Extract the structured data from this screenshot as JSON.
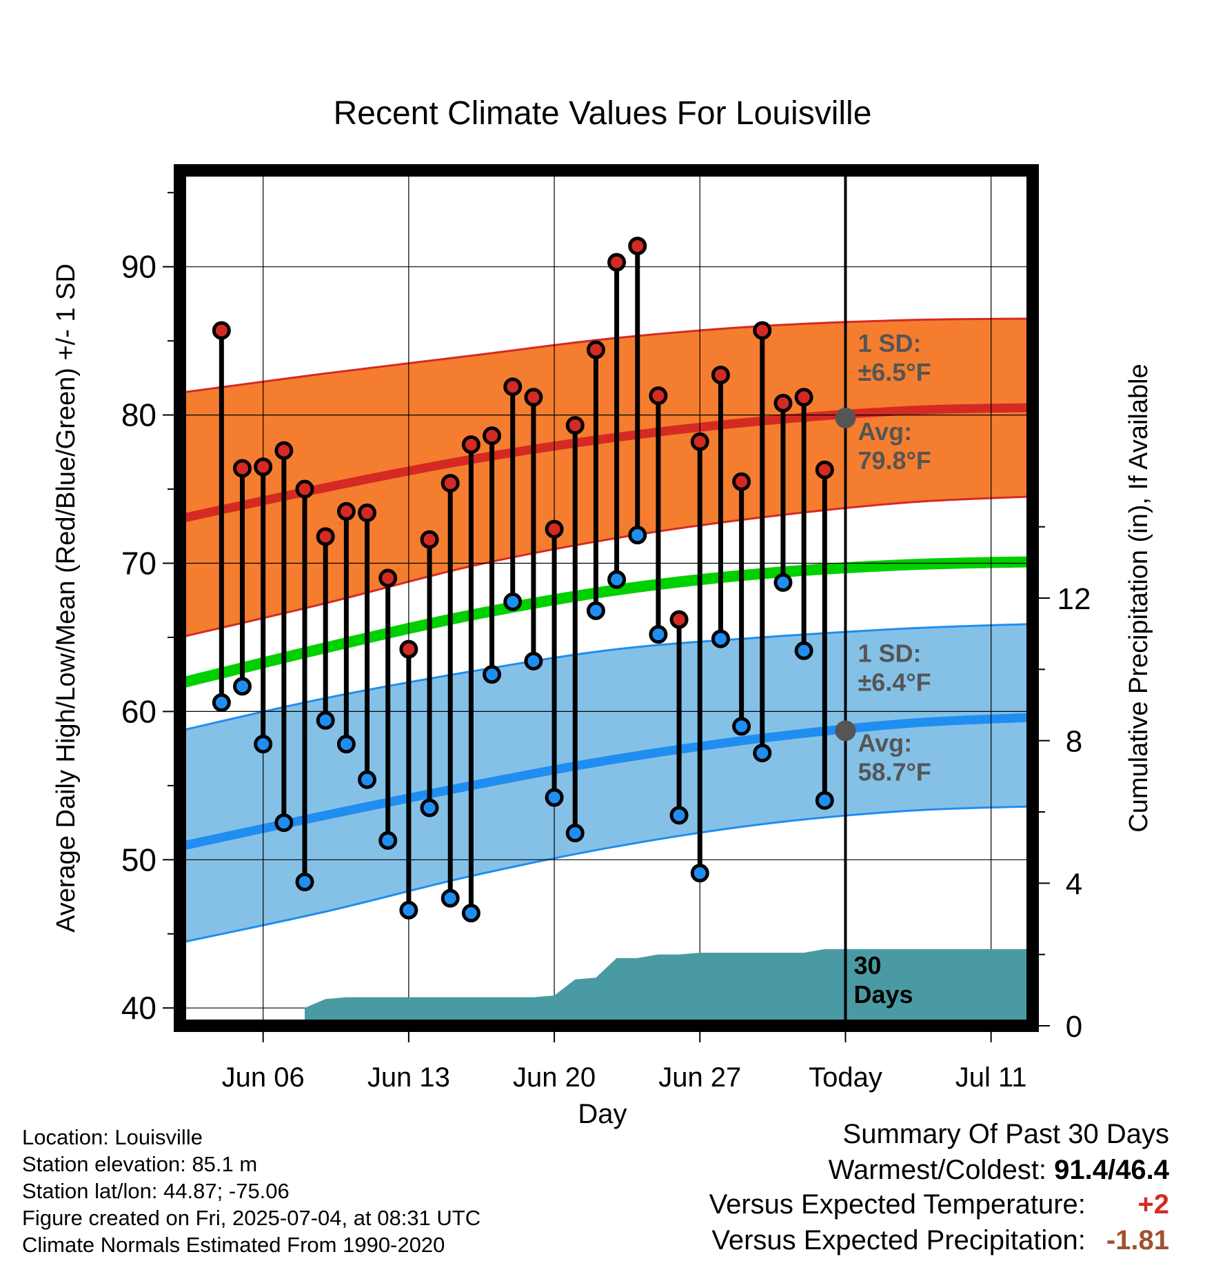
{
  "chart_data": {
    "type": "line",
    "title": "Recent Climate Values For Louisville",
    "xlabel": "Day",
    "ylabel": "Average Daily High/Low/Mean (Red/Blue/Green) +/- 1 SD",
    "y2label": "Cumulative Precipitation (in), If Available",
    "ylim": [
      38.8,
      96.5
    ],
    "y2lim": [
      0,
      24
    ],
    "yticks": [
      40,
      50,
      60,
      70,
      80,
      90
    ],
    "y2ticks": [
      0,
      4,
      8,
      12
    ],
    "xlim": [
      "Jun 02",
      "Jul 13"
    ],
    "xticks": [
      {
        "x": "Jun 06",
        "label": "Jun 06"
      },
      {
        "x": "Jun 13",
        "label": "Jun 13"
      },
      {
        "x": "Jun 20",
        "label": "Jun 20"
      },
      {
        "x": "Jun 27",
        "label": "Jun 27"
      },
      {
        "x": "Jul 04",
        "label": "Today"
      },
      {
        "x": "Jul 11",
        "label": "Jul 11"
      }
    ],
    "grid": true,
    "today": "Jul 04",
    "dates": [
      "Jun 04",
      "Jun 05",
      "Jun 06",
      "Jun 07",
      "Jun 08",
      "Jun 09",
      "Jun 10",
      "Jun 11",
      "Jun 12",
      "Jun 13",
      "Jun 14",
      "Jun 15",
      "Jun 16",
      "Jun 17",
      "Jun 18",
      "Jun 19",
      "Jun 20",
      "Jun 21",
      "Jun 22",
      "Jun 23",
      "Jun 24",
      "Jun 25",
      "Jun 26",
      "Jun 27",
      "Jun 28",
      "Jun 29",
      "Jun 30",
      "Jul 01",
      "Jul 02",
      "Jul 03"
    ],
    "highs": [
      85.7,
      76.4,
      76.5,
      77.6,
      75.0,
      71.8,
      73.5,
      73.4,
      69.0,
      64.2,
      71.6,
      75.4,
      78.0,
      78.6,
      81.9,
      81.2,
      72.3,
      79.3,
      84.4,
      90.3,
      91.4,
      81.3,
      66.2,
      78.2,
      82.7,
      75.5,
      85.7,
      80.8,
      81.2,
      76.3
    ],
    "lows": [
      60.6,
      61.7,
      57.8,
      52.5,
      48.5,
      59.4,
      57.8,
      55.4,
      51.3,
      46.6,
      53.5,
      47.4,
      46.4,
      62.5,
      67.4,
      63.4,
      54.2,
      51.8,
      66.8,
      68.9,
      71.9,
      65.2,
      53.0,
      49.1,
      64.9,
      59.0,
      57.2,
      68.7,
      64.1,
      54.0
    ],
    "normals": {
      "x": [
        "Jun 02",
        "Jun 09",
        "Jun 16",
        "Jun 23",
        "Jun 30",
        "Jul 07",
        "Jul 13"
      ],
      "high_mean": [
        73.0,
        75.1,
        77.0,
        78.5,
        79.6,
        80.3,
        80.5
      ],
      "high_upper": [
        81.5,
        82.8,
        84.0,
        85.2,
        86.0,
        86.4,
        86.5
      ],
      "high_lower": [
        65.0,
        67.3,
        69.8,
        71.7,
        73.1,
        74.1,
        74.5
      ],
      "mean": [
        61.9,
        64.3,
        66.5,
        68.2,
        69.3,
        69.9,
        70.1
      ],
      "low_mean": [
        50.9,
        53.0,
        55.0,
        56.8,
        58.2,
        59.2,
        59.6
      ],
      "low_upper": [
        58.7,
        60.9,
        62.7,
        64.2,
        65.0,
        65.6,
        65.9
      ],
      "low_lower": [
        44.4,
        46.5,
        48.9,
        50.9,
        52.4,
        53.3,
        53.6
      ]
    },
    "precip_cumulative": {
      "x": [
        "Jun 08",
        "Jun 09",
        "Jun 10",
        "Jun 19",
        "Jun 20",
        "Jun 21",
        "Jun 22",
        "Jun 23",
        "Jun 24",
        "Jun 25",
        "Jun 26",
        "Jun 27",
        "Jul 02",
        "Jul 03",
        "Jul 04",
        "Jul 13"
      ],
      "values": [
        0.5,
        0.75,
        0.8,
        0.8,
        0.85,
        1.3,
        1.35,
        1.9,
        1.9,
        2.0,
        2.0,
        2.05,
        2.05,
        2.15,
        2.15,
        2.15
      ]
    },
    "annotations": {
      "high_sd": "1 SD:\n±6.5°F",
      "high_avg": "Avg:\n79.8°F",
      "high_avg_value": 79.8,
      "low_sd": "1 SD:\n±6.4°F",
      "low_avg": "Avg:\n58.7°F",
      "low_avg_value": 58.7,
      "precip": "30\nDays"
    },
    "colors": {
      "high_band": "#f57d2f",
      "high_line": "#d52a23",
      "mean_line": "#00d000",
      "low_band": "#85c1e7",
      "low_line": "#1f8ef0",
      "precip": "#4a9aa3",
      "high_dot": "#d52a23",
      "low_dot": "#1f8ef0",
      "avg_dot": "#555555",
      "annotation_text": "#555555"
    }
  },
  "meta": {
    "location": "Location: Louisville",
    "elevation": "Station elevation: 85.1 m",
    "latlon": "Station lat/lon: 44.87; -75.06",
    "created": "Figure created on Fri, 2025-07-04, at 08:31 UTC",
    "normals": "Climate Normals Estimated From 1990-2020"
  },
  "summary": {
    "heading": "Summary Of Past 30 Days",
    "warmest_label": "Warmest/Coldest:",
    "warmest_value": "91.4/46.4",
    "temp_label": "Versus Expected Temperature:",
    "temp_value": "+2",
    "temp_color": "#d52a23",
    "precip_label": "Versus Expected Precipitation:",
    "precip_value": "-1.81",
    "precip_color": "#a0522d"
  }
}
